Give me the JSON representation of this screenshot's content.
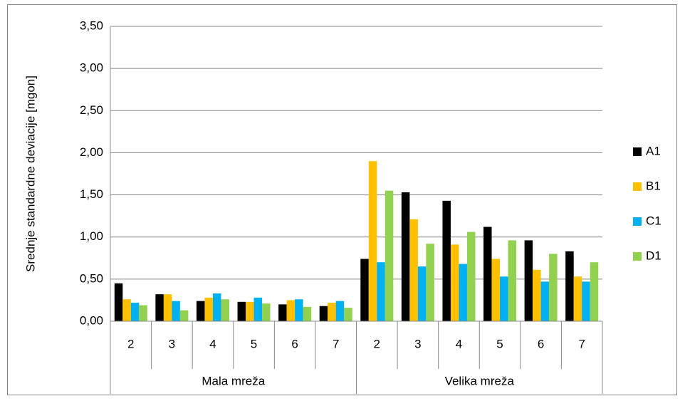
{
  "chart_data": {
    "type": "bar",
    "ylabel": "Srednje standardne deviacije [mgon]",
    "groups": [
      {
        "name": "Mala mreža",
        "categories": [
          "2",
          "3",
          "4",
          "5",
          "6",
          "7"
        ]
      },
      {
        "name": "Velika mreža",
        "categories": [
          "2",
          "3",
          "4",
          "5",
          "6",
          "7"
        ]
      }
    ],
    "series": [
      {
        "name": "A1",
        "color": "#000000",
        "values": [
          0.45,
          0.32,
          0.24,
          0.23,
          0.2,
          0.18,
          0.74,
          1.53,
          1.43,
          1.12,
          0.96,
          0.83
        ]
      },
      {
        "name": "B1",
        "color": "#ffc000",
        "values": [
          0.26,
          0.32,
          0.28,
          0.23,
          0.25,
          0.22,
          1.9,
          1.21,
          0.91,
          0.74,
          0.61,
          0.53
        ]
      },
      {
        "name": "C1",
        "color": "#00b0f0",
        "values": [
          0.22,
          0.24,
          0.33,
          0.28,
          0.26,
          0.24,
          0.7,
          0.65,
          0.68,
          0.53,
          0.47,
          0.47
        ]
      },
      {
        "name": "D1",
        "color": "#92d050",
        "values": [
          0.19,
          0.13,
          0.26,
          0.21,
          0.17,
          0.16,
          1.55,
          0.92,
          1.06,
          0.96,
          0.8,
          0.7
        ]
      }
    ],
    "ylim": [
      0,
      3.5
    ],
    "yticks": [
      {
        "value": 0,
        "label": "0,00"
      },
      {
        "value": 0.5,
        "label": "0,50"
      },
      {
        "value": 1,
        "label": "1,00"
      },
      {
        "value": 1.5,
        "label": "1,50"
      },
      {
        "value": 2,
        "label": "2,00"
      },
      {
        "value": 2.5,
        "label": "2,50"
      },
      {
        "value": 3,
        "label": "3,00"
      },
      {
        "value": 3.5,
        "label": "3,50"
      }
    ],
    "grid": true,
    "legend": "right"
  }
}
